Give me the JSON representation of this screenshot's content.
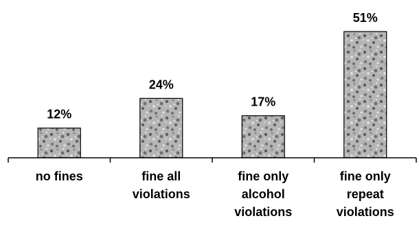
{
  "chart_data": {
    "type": "bar",
    "categories": [
      [
        "no fines"
      ],
      [
        "fine all",
        "violations"
      ],
      [
        "fine only",
        "alcohol",
        "violations"
      ],
      [
        "fine only",
        "repeat",
        "violations"
      ]
    ],
    "values": [
      12,
      24,
      17,
      51
    ],
    "data_labels": [
      "12%",
      "24%",
      "17%",
      "51%"
    ],
    "title": "",
    "xlabel": "",
    "ylabel": "",
    "ylim": [
      0,
      51
    ],
    "grid": false,
    "legend": "none",
    "colors": {
      "bar_fill": "#b5b5b5",
      "bar_pattern_dark": "#5a5a5a",
      "bar_pattern_mid": "#8c8c8c",
      "bar_pattern_light": "#e6e6e6",
      "bar_stroke": "#000000",
      "axis": "#000000",
      "text": "#000000"
    }
  }
}
